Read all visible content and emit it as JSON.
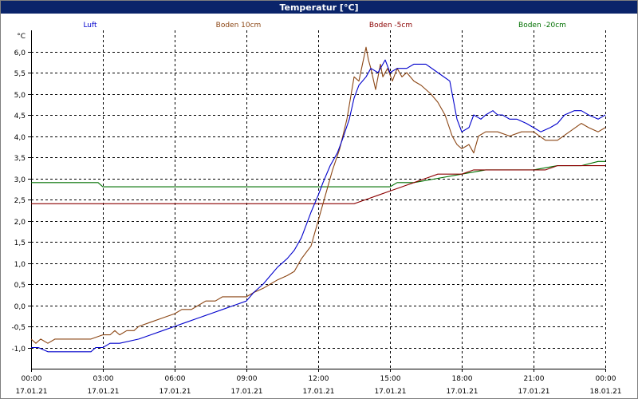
{
  "window": {
    "title": "Temperatur [°C]"
  },
  "colors": {
    "luft": "#0000cc",
    "boden_10cm": "#8b4513",
    "boden_5cm": "#8b0000",
    "boden_20cm": "#007000",
    "grid": "#000000",
    "titlebar": "#0a246a"
  },
  "chart_data": {
    "type": "line",
    "title": "",
    "xlabel": "",
    "ylabel": "°C",
    "xlim": [
      0,
      24
    ],
    "ylim": [
      -1.5,
      6.5
    ],
    "grid": true,
    "legend_position": "top",
    "yticks": [
      "-1,0",
      "-0,5",
      "0,0",
      "0,5",
      "1,0",
      "1,5",
      "2,0",
      "2,5",
      "3,0",
      "3,5",
      "4,0",
      "4,5",
      "5,0",
      "5,5",
      "6,0"
    ],
    "ytick_values": [
      -1.0,
      -0.5,
      0.0,
      0.5,
      1.0,
      1.5,
      2.0,
      2.5,
      3.0,
      3.5,
      4.0,
      4.5,
      5.0,
      5.5,
      6.0
    ],
    "xticks": [
      {
        "time": "00:00",
        "date": "17.01.21",
        "h": 0
      },
      {
        "time": "03:00",
        "date": "17.01.21",
        "h": 3
      },
      {
        "time": "06:00",
        "date": "17.01.21",
        "h": 6
      },
      {
        "time": "09:00",
        "date": "17.01.21",
        "h": 9
      },
      {
        "time": "12:00",
        "date": "17.01.21",
        "h": 12
      },
      {
        "time": "15:00",
        "date": "17.01.21",
        "h": 15
      },
      {
        "time": "18:00",
        "date": "17.01.21",
        "h": 18
      },
      {
        "time": "21:00",
        "date": "17.01.21",
        "h": 21
      },
      {
        "time": "00:00",
        "date": "18.01.21",
        "h": 24
      }
    ],
    "series": [
      {
        "name": "Luft",
        "key": "luft",
        "x": [
          0,
          0.3,
          0.7,
          1.5,
          2.5,
          2.7,
          3.0,
          3.3,
          3.7,
          4.5,
          5.0,
          5.5,
          6.0,
          6.5,
          7.0,
          7.5,
          8.0,
          8.5,
          9.0,
          9.3,
          9.7,
          10.0,
          10.3,
          10.7,
          11.0,
          11.3,
          11.5,
          11.7,
          12.0,
          12.2,
          12.5,
          12.8,
          13.0,
          13.3,
          13.5,
          13.7,
          14.0,
          14.2,
          14.5,
          14.8,
          15.0,
          15.3,
          15.7,
          16.0,
          16.5,
          17.0,
          17.5,
          17.8,
          18.0,
          18.3,
          18.5,
          18.8,
          19.0,
          19.3,
          19.5,
          19.7,
          20.0,
          20.3,
          20.7,
          21.0,
          21.3,
          21.7,
          22.0,
          22.3,
          22.7,
          23.0,
          23.3,
          23.7,
          24.0
        ],
        "y": [
          -1.0,
          -1.0,
          -1.1,
          -1.1,
          -1.1,
          -1.0,
          -1.0,
          -0.9,
          -0.9,
          -0.8,
          -0.7,
          -0.6,
          -0.5,
          -0.4,
          -0.3,
          -0.2,
          -0.1,
          0.0,
          0.1,
          0.3,
          0.5,
          0.7,
          0.9,
          1.1,
          1.3,
          1.6,
          1.9,
          2.2,
          2.6,
          2.9,
          3.3,
          3.6,
          3.9,
          4.4,
          4.9,
          5.2,
          5.4,
          5.6,
          5.5,
          5.8,
          5.5,
          5.6,
          5.6,
          5.7,
          5.7,
          5.5,
          5.3,
          4.4,
          4.1,
          4.2,
          4.5,
          4.4,
          4.5,
          4.6,
          4.5,
          4.5,
          4.4,
          4.4,
          4.3,
          4.2,
          4.1,
          4.2,
          4.3,
          4.5,
          4.6,
          4.6,
          4.5,
          4.4,
          4.5
        ]
      },
      {
        "name": "Boden 10cm",
        "key": "boden_10cm",
        "x": [
          0,
          0.2,
          0.4,
          0.7,
          1.0,
          1.5,
          2.0,
          2.5,
          3.0,
          3.3,
          3.5,
          3.7,
          4.0,
          4.3,
          4.5,
          5.0,
          5.5,
          6.0,
          6.3,
          6.7,
          7.0,
          7.3,
          7.7,
          8.0,
          8.5,
          9.0,
          9.3,
          9.7,
          10.0,
          10.3,
          10.7,
          11.0,
          11.3,
          11.7,
          12.0,
          12.3,
          12.6,
          12.9,
          13.2,
          13.5,
          13.7,
          14.0,
          14.1,
          14.2,
          14.4,
          14.6,
          14.7,
          14.9,
          15.1,
          15.3,
          15.5,
          15.7,
          16.0,
          16.3,
          16.7,
          17.0,
          17.3,
          17.6,
          17.8,
          18.0,
          18.3,
          18.5,
          18.7,
          19.0,
          19.5,
          20.0,
          20.5,
          21.0,
          21.5,
          22.0,
          22.5,
          23.0,
          23.3,
          23.7,
          24.0
        ],
        "y": [
          -0.8,
          -0.9,
          -0.8,
          -0.9,
          -0.8,
          -0.8,
          -0.8,
          -0.8,
          -0.7,
          -0.7,
          -0.6,
          -0.7,
          -0.6,
          -0.6,
          -0.5,
          -0.4,
          -0.3,
          -0.2,
          -0.1,
          -0.1,
          0.0,
          0.1,
          0.1,
          0.2,
          0.2,
          0.2,
          0.3,
          0.4,
          0.5,
          0.6,
          0.7,
          0.8,
          1.1,
          1.4,
          2.0,
          2.6,
          3.2,
          3.7,
          4.4,
          5.4,
          5.3,
          6.1,
          5.8,
          5.6,
          5.1,
          5.7,
          5.4,
          5.6,
          5.3,
          5.6,
          5.4,
          5.5,
          5.3,
          5.2,
          5.0,
          4.8,
          4.5,
          4.0,
          3.8,
          3.7,
          3.8,
          3.6,
          4.0,
          4.1,
          4.1,
          4.0,
          4.1,
          4.1,
          3.9,
          3.9,
          4.1,
          4.3,
          4.2,
          4.1,
          4.2
        ]
      },
      {
        "name": "Boden -5cm",
        "key": "boden_5cm",
        "x": [
          0,
          12.0,
          13.5,
          14.0,
          14.5,
          15.0,
          15.5,
          16.0,
          16.5,
          17.0,
          17.5,
          18.0,
          18.5,
          19.0,
          19.5,
          20.0,
          20.5,
          21.0,
          21.5,
          22.0,
          22.5,
          23.0,
          23.5,
          24.0
        ],
        "y": [
          2.4,
          2.4,
          2.4,
          2.5,
          2.6,
          2.7,
          2.8,
          2.9,
          3.0,
          3.1,
          3.1,
          3.1,
          3.2,
          3.2,
          3.2,
          3.2,
          3.2,
          3.2,
          3.2,
          3.3,
          3.3,
          3.3,
          3.3,
          3.3
        ]
      },
      {
        "name": "Boden -20cm",
        "key": "boden_20cm",
        "x": [
          0,
          2.8,
          3.0,
          15.0,
          15.3,
          16.0,
          17.0,
          18.0,
          19.0,
          20.0,
          21.0,
          22.0,
          23.0,
          23.7,
          24.0
        ],
        "y": [
          2.9,
          2.9,
          2.8,
          2.8,
          2.9,
          2.9,
          3.0,
          3.1,
          3.2,
          3.2,
          3.2,
          3.3,
          3.3,
          3.4,
          3.4
        ]
      }
    ]
  }
}
